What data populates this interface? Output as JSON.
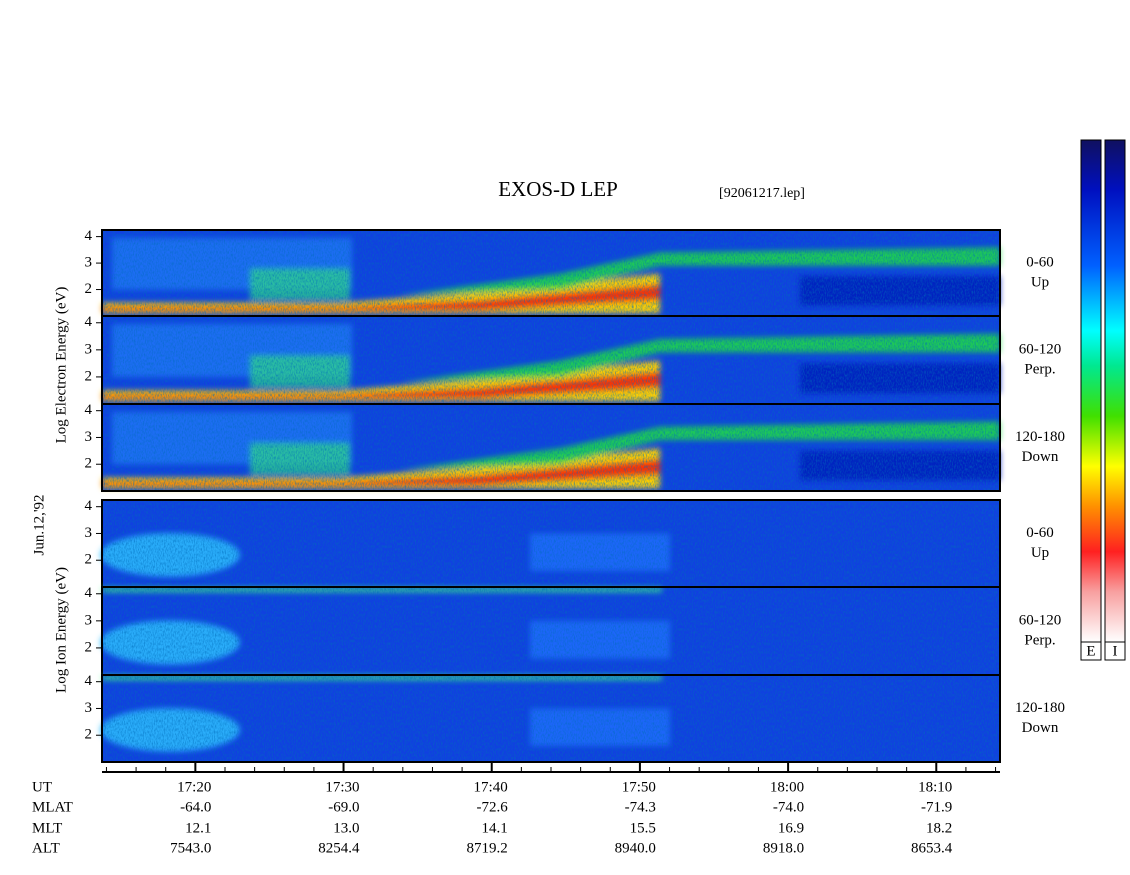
{
  "title": "EXOS-D LEP",
  "file": "[92061217.lep]",
  "date": "Jun.12,'92",
  "groups": [
    {
      "label": "Log Electron Energy (eV)",
      "panels": [
        {
          "lines": [
            "0-60",
            "Up"
          ]
        },
        {
          "lines": [
            "60-120",
            "Perp."
          ]
        },
        {
          "lines": [
            "120-180",
            "Down"
          ]
        }
      ]
    },
    {
      "label": "Log Ion Energy (eV)",
      "panels": [
        {
          "lines": [
            "0-60",
            "Up"
          ]
        },
        {
          "lines": [
            "60-120",
            "Perp."
          ]
        },
        {
          "lines": [
            "120-180",
            "Down"
          ]
        }
      ]
    }
  ],
  "ylim": [
    1,
    4.25
  ],
  "yticks": [
    2,
    3,
    4
  ],
  "xlim": [
    1033.7,
    1094.3
  ],
  "xticks": [
    {
      "value": 1040,
      "label": "17:20"
    },
    {
      "value": 1050,
      "label": "17:30"
    },
    {
      "value": 1060,
      "label": "17:40"
    },
    {
      "value": 1070,
      "label": "17:50"
    },
    {
      "value": 1080,
      "label": "18:00"
    },
    {
      "value": 1090,
      "label": "18:10"
    }
  ],
  "ephemeris": [
    {
      "name": "UT"
    },
    {
      "name": "MLAT",
      "values": [
        "-64.0",
        "-69.0",
        "-72.6",
        "-74.3",
        "-74.0",
        "-71.9"
      ]
    },
    {
      "name": "MLT",
      "values": [
        "12.1",
        "13.0",
        "14.1",
        "15.5",
        "16.9",
        "18.2"
      ]
    },
    {
      "name": "ALT",
      "values": [
        "7543.0",
        "8254.4",
        "8719.2",
        "8940.0",
        "8918.0",
        "8653.4"
      ]
    }
  ],
  "colorbars": [
    "E",
    "I"
  ]
}
